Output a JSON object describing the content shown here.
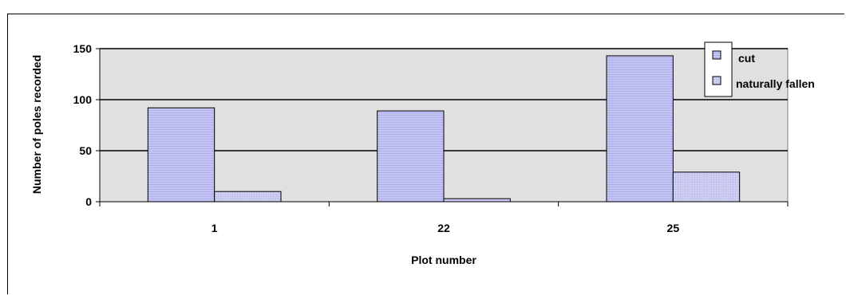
{
  "chart_data": {
    "type": "bar",
    "title": "",
    "xlabel": "Plot number",
    "ylabel": "Number of poles recorded",
    "categories": [
      "1",
      "22",
      "25"
    ],
    "series": [
      {
        "name": "cut",
        "values": [
          92,
          89,
          143
        ]
      },
      {
        "name": "naturally fallen",
        "values": [
          10,
          3,
          29
        ]
      }
    ],
    "ylim": [
      0,
      150
    ],
    "yticks": [
      0,
      50,
      100,
      150
    ],
    "grid": true,
    "legend_position": "top-right",
    "colors": {
      "plot_area": "#e0e0e0",
      "cut": "#c4c4f4",
      "naturally_fallen": "#c8c8f0",
      "grid": "#000000"
    }
  }
}
